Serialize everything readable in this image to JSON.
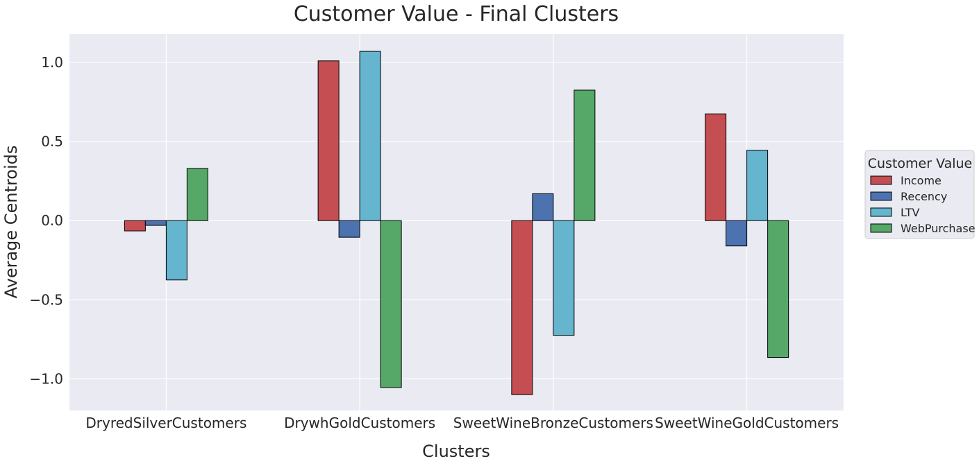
{
  "chart_data": {
    "type": "bar",
    "title": "Customer Value - Final Clusters",
    "xlabel": "Clusters",
    "ylabel": "Average Centroids",
    "categories": [
      "DryredSilverCustomers",
      "DrywhGoldCustomers",
      "SweetWineBronzeCustomers",
      "SweetWineGoldCustomers"
    ],
    "series": [
      {
        "name": "Income",
        "color": "#c44e52",
        "values": [
          -0.065,
          1.01,
          -1.1,
          0.675
        ]
      },
      {
        "name": "Recency",
        "color": "#4c72b0",
        "values": [
          -0.03,
          -0.105,
          0.17,
          -0.16
        ]
      },
      {
        "name": "LTV",
        "color": "#64b5cd",
        "values": [
          -0.375,
          1.07,
          -0.725,
          0.445
        ]
      },
      {
        "name": "WebPurchase",
        "color": "#55a868",
        "values": [
          0.33,
          -1.055,
          0.825,
          -0.865
        ]
      }
    ],
    "ylim": [
      -1.2,
      1.18
    ],
    "yticks": [
      1.0,
      0.5,
      0.0,
      -0.5,
      -1.0
    ],
    "ytick_labels": [
      "1.0",
      "0.5",
      "0.0",
      "−0.5",
      "−1.0"
    ],
    "grid": true,
    "legend": {
      "title": "Customer Value",
      "placement": "center-right-outside"
    },
    "background": "#eaeaf2",
    "grid_color": "#ffffff"
  }
}
